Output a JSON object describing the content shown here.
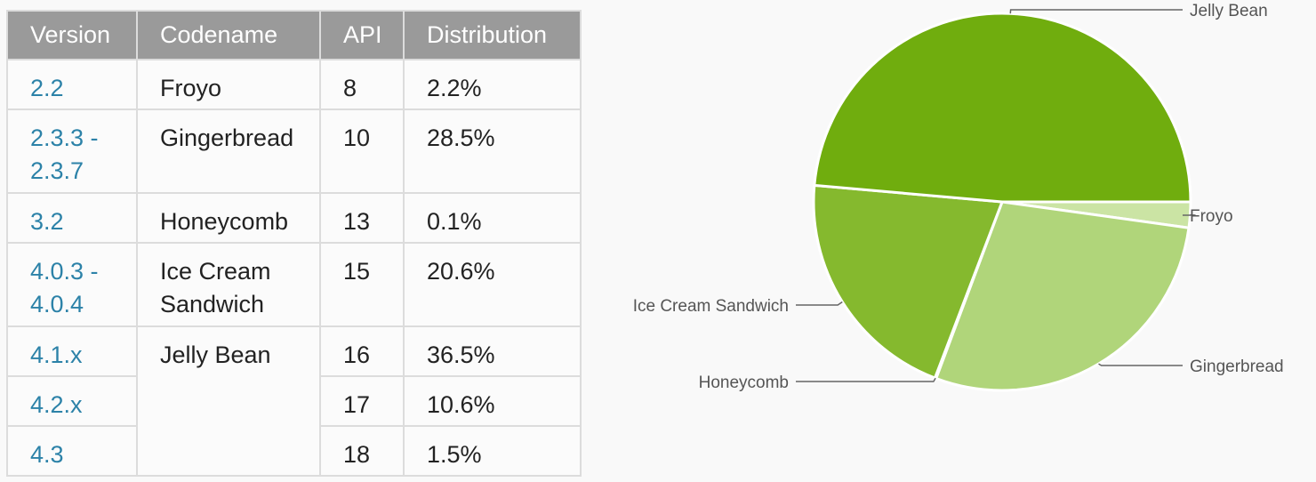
{
  "table": {
    "headers": [
      "Version",
      "Codename",
      "API",
      "Distribution"
    ],
    "rows": [
      {
        "version": "2.2",
        "codename": "Froyo",
        "api": "8",
        "distribution": "2.2%"
      },
      {
        "version": "2.3.3 - 2.3.7",
        "codename": "Gingerbread",
        "api": "10",
        "distribution": "28.5%"
      },
      {
        "version": "3.2",
        "codename": "Honeycomb",
        "api": "13",
        "distribution": "0.1%"
      },
      {
        "version": "4.0.3 - 4.0.4",
        "codename": "Ice Cream Sandwich",
        "api": "15",
        "distribution": "20.6%"
      },
      {
        "version": "4.1.x",
        "codename": "Jelly Bean",
        "api": "16",
        "distribution": "36.5%"
      },
      {
        "version": "4.2.x",
        "codename": "",
        "api": "17",
        "distribution": "10.6%"
      },
      {
        "version": "4.3",
        "codename": "",
        "api": "18",
        "distribution": "1.5%"
      }
    ]
  },
  "chart_data": {
    "type": "pie",
    "title": "",
    "slices": [
      {
        "label": "Froyo",
        "value": 2.2,
        "color": "#cbe4a4"
      },
      {
        "label": "Gingerbread",
        "value": 28.5,
        "color": "#b0d57a"
      },
      {
        "label": "Honeycomb",
        "value": 0.1,
        "color": "#96c24a"
      },
      {
        "label": "Ice Cream Sandwich",
        "value": 20.6,
        "color": "#85b92e"
      },
      {
        "label": "Jelly Bean",
        "value": 48.6,
        "color": "#70ad0e"
      }
    ],
    "start_angle_deg": 0,
    "direction": "clockwise",
    "label_placement": "outside-with-leader-lines"
  }
}
